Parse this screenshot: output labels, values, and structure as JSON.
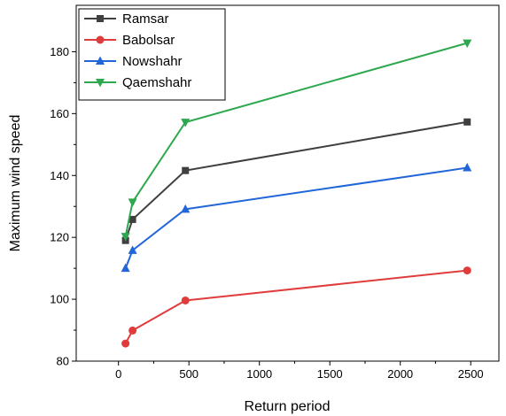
{
  "chart_data": {
    "type": "line",
    "title": "",
    "xlabel": "Return period",
    "ylabel": "Maximum wind speed",
    "xlim": [
      -300,
      2700
    ],
    "ylim": [
      80,
      195
    ],
    "x_ticks": [
      0,
      500,
      1000,
      1500,
      2000,
      2500
    ],
    "y_ticks": [
      80,
      100,
      120,
      140,
      160,
      180
    ],
    "x": [
      50,
      100,
      475,
      2475
    ],
    "grid": false,
    "legend_position": "top-left",
    "series": [
      {
        "name": "Ramsar",
        "color": "#3f3f3f",
        "marker": "square",
        "values": [
          119,
          125.8,
          141.6,
          157.3
        ]
      },
      {
        "name": "Babolsar",
        "color": "#e03c3c",
        "marker": "circle",
        "values": [
          85.7,
          89.9,
          99.6,
          109.3
        ]
      },
      {
        "name": "Nowshahr",
        "color": "#2166d9",
        "marker": "triangle-up",
        "values": [
          110,
          115.8,
          129.1,
          142.5
        ]
      },
      {
        "name": "Qaemshahr",
        "color": "#2ea84e",
        "marker": "triangle-down",
        "values": [
          120.3,
          131.4,
          157.2,
          182.8
        ]
      }
    ]
  }
}
